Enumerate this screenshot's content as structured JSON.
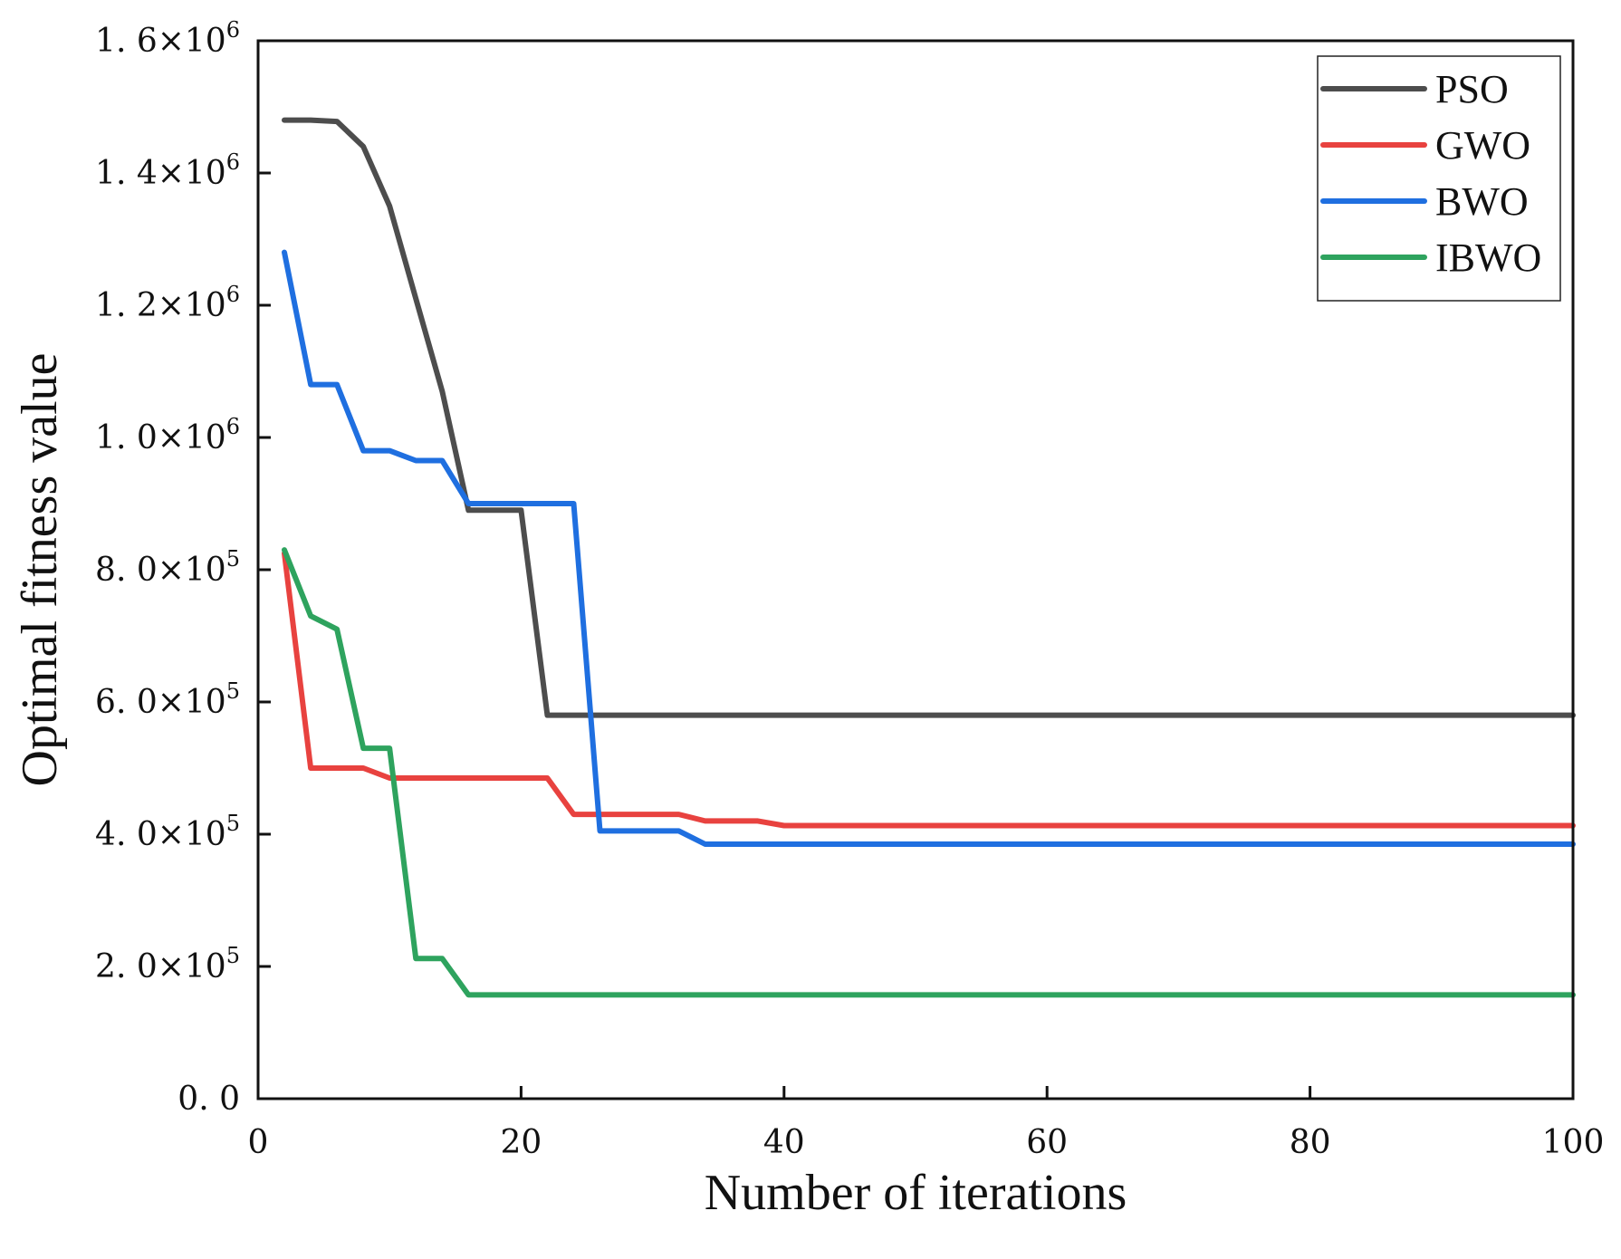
{
  "chart_data": {
    "type": "line",
    "title": "",
    "xlabel": "Number of iterations",
    "ylabel": "Optimal fitness value",
    "xlim": [
      0,
      100
    ],
    "ylim": [
      0,
      1600000
    ],
    "xticks": [
      0,
      20,
      40,
      60,
      80,
      100
    ],
    "xtick_labels": [
      "0",
      "20",
      "40",
      "60",
      "80",
      "100"
    ],
    "yticks": [
      0,
      200000,
      400000,
      600000,
      800000,
      1000000,
      1200000,
      1400000,
      1600000
    ],
    "ytick_labels": [
      {
        "mantissa": "0. 0",
        "exp": ""
      },
      {
        "mantissa": "2. 0×10",
        "exp": "5"
      },
      {
        "mantissa": "4. 0×10",
        "exp": "5"
      },
      {
        "mantissa": "6. 0×10",
        "exp": "5"
      },
      {
        "mantissa": "8. 0×10",
        "exp": "5"
      },
      {
        "mantissa": "1. 0×10",
        "exp": "6"
      },
      {
        "mantissa": "1. 2×10",
        "exp": "6"
      },
      {
        "mantissa": "1. 4×10",
        "exp": "6"
      },
      {
        "mantissa": "1. 6×10",
        "exp": "6"
      }
    ],
    "legend_position": "top-right",
    "grid": false,
    "series": [
      {
        "name": "PSO",
        "color": "#4d4d4d",
        "points": [
          [
            2,
            1480000
          ],
          [
            4,
            1480000
          ],
          [
            6,
            1478000
          ],
          [
            8,
            1440000
          ],
          [
            10,
            1350000
          ],
          [
            12,
            1210000
          ],
          [
            14,
            1070000
          ],
          [
            16,
            890000
          ],
          [
            18,
            890000
          ],
          [
            20,
            890000
          ],
          [
            22,
            580000
          ],
          [
            24,
            580000
          ],
          [
            100,
            580000
          ]
        ]
      },
      {
        "name": "GWO",
        "color": "#e8423f",
        "points": [
          [
            2,
            825000
          ],
          [
            4,
            500000
          ],
          [
            6,
            500000
          ],
          [
            8,
            500000
          ],
          [
            10,
            485000
          ],
          [
            12,
            485000
          ],
          [
            22,
            485000
          ],
          [
            24,
            430000
          ],
          [
            26,
            430000
          ],
          [
            32,
            430000
          ],
          [
            34,
            420000
          ],
          [
            38,
            420000
          ],
          [
            40,
            413000
          ],
          [
            100,
            413000
          ]
        ]
      },
      {
        "name": "BWO",
        "color": "#1f6fe0",
        "points": [
          [
            2,
            1280000
          ],
          [
            4,
            1080000
          ],
          [
            6,
            1080000
          ],
          [
            8,
            980000
          ],
          [
            10,
            980000
          ],
          [
            12,
            965000
          ],
          [
            14,
            965000
          ],
          [
            16,
            900000
          ],
          [
            18,
            900000
          ],
          [
            22,
            900000
          ],
          [
            24,
            900000
          ],
          [
            26,
            405000
          ],
          [
            28,
            405000
          ],
          [
            32,
            405000
          ],
          [
            34,
            385000
          ],
          [
            100,
            385000
          ]
        ]
      },
      {
        "name": "IBWO",
        "color": "#2ea35e",
        "points": [
          [
            2,
            830000
          ],
          [
            4,
            730000
          ],
          [
            6,
            710000
          ],
          [
            8,
            530000
          ],
          [
            10,
            530000
          ],
          [
            12,
            212000
          ],
          [
            14,
            212000
          ],
          [
            16,
            157000
          ],
          [
            18,
            157000
          ],
          [
            100,
            157000
          ]
        ]
      }
    ]
  }
}
